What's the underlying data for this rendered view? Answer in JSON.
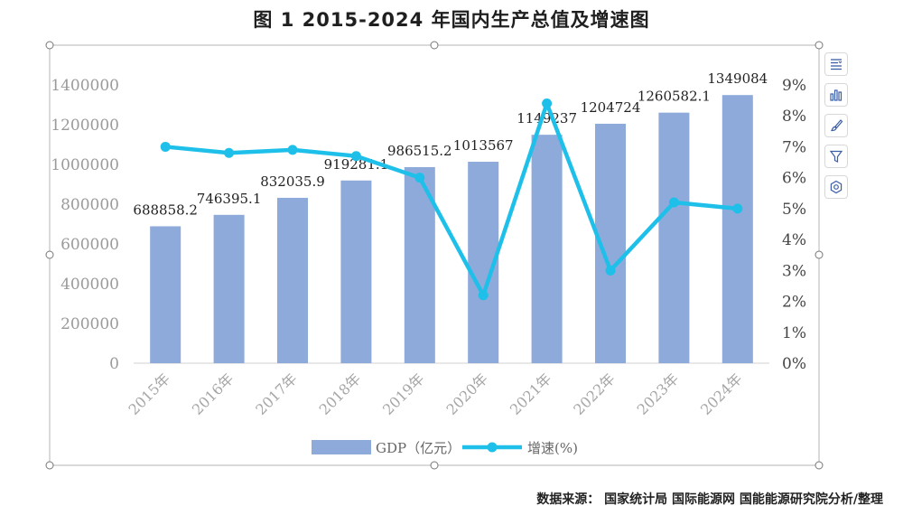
{
  "title": "图 1 2015-2024 年国内生产总值及增速图",
  "source_note": "数据来源： 国家统计局 国际能源网 国能能源研究院分析/整理",
  "toolbar": {
    "items": [
      {
        "name": "chart-elements-icon"
      },
      {
        "name": "chart-type-icon"
      },
      {
        "name": "chart-style-icon"
      },
      {
        "name": "chart-filter-icon"
      },
      {
        "name": "chart-settings-icon"
      }
    ]
  },
  "chart_data": {
    "type": "bar",
    "categories": [
      "2015年",
      "2016年",
      "2017年",
      "2018年",
      "2019年",
      "2020年",
      "2021年",
      "2022年",
      "2023年",
      "2024年"
    ],
    "series": [
      {
        "name": "GDP（亿元）",
        "type": "bar",
        "axis": "left",
        "color": "#8eaadb",
        "values": [
          688858.2,
          746395.1,
          832035.9,
          919281.1,
          986515.2,
          1013567,
          1149237,
          1204724,
          1260582.1,
          1349084
        ],
        "labels": [
          "688858.2",
          "746395.1",
          "832035.9",
          "919281.1",
          "986515.2",
          "1013567",
          "1149237",
          "1204724",
          "1260582.1",
          "1349084"
        ]
      },
      {
        "name": "增速(%)",
        "type": "line",
        "axis": "right",
        "color": "#1ec0ea",
        "values": [
          7.0,
          6.8,
          6.9,
          6.7,
          6.0,
          2.2,
          8.4,
          3.0,
          5.2,
          5.0
        ]
      }
    ],
    "y_left": {
      "ylim": [
        0,
        1400000
      ],
      "ticks": [
        "0",
        "200000",
        "400000",
        "600000",
        "800000",
        "1000000",
        "1200000",
        "1400000"
      ]
    },
    "y_right": {
      "ylim": [
        0,
        9
      ],
      "ticks": [
        "0%",
        "1%",
        "2%",
        "3%",
        "4%",
        "5%",
        "6%",
        "7%",
        "8%",
        "9%"
      ]
    },
    "grid": false,
    "legend": "bottom"
  }
}
